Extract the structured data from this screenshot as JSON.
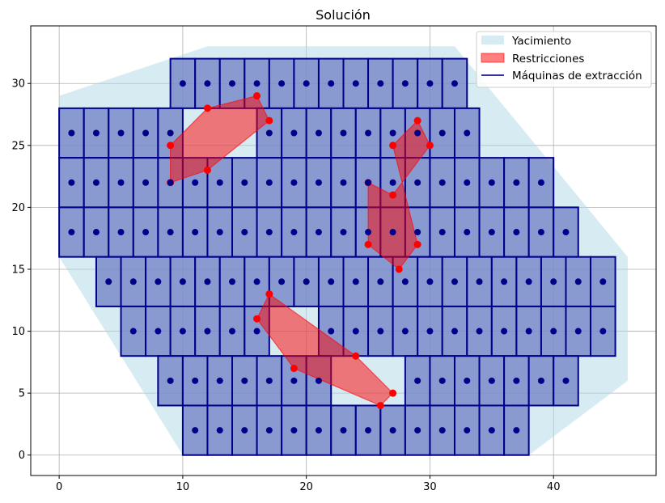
{
  "chart_data": {
    "type": "scatter",
    "title": "Solución",
    "xlabel": "",
    "ylabel": "",
    "xlim": [
      -2.3,
      48.3
    ],
    "ylim": [
      -1.65,
      34.65
    ],
    "xticks": [
      0,
      10,
      20,
      30,
      40
    ],
    "yticks": [
      0,
      5,
      10,
      15,
      20,
      25,
      30
    ],
    "grid": true,
    "legend_position": "top-right",
    "legend": [
      {
        "label": "Yacimiento",
        "kind": "patch",
        "color": "#add8e6"
      },
      {
        "label": "Restricciones",
        "kind": "patch",
        "color": "#ff0000"
      },
      {
        "label": "Máquinas de extracción",
        "kind": "line",
        "color": "#00008b"
      }
    ],
    "colors": {
      "deposit_fill": "#add8e6",
      "restriction_fill": "#ff0000",
      "restriction_vertex": "#ff0000",
      "machine_fill": "#6f7fc5",
      "machine_edge": "#00008b",
      "machine_center": "#00008b"
    },
    "deposit_polygon": [
      [
        0,
        29
      ],
      [
        12,
        33
      ],
      [
        32,
        33
      ],
      [
        46,
        16
      ],
      [
        46,
        6
      ],
      [
        38,
        0
      ],
      [
        10,
        0
      ],
      [
        0,
        16
      ]
    ],
    "restrictions": [
      [
        [
          9,
          25
        ],
        [
          12,
          28
        ],
        [
          16,
          29
        ],
        [
          17,
          27
        ],
        [
          12,
          23
        ],
        [
          9,
          22
        ]
      ],
      [
        [
          27,
          25
        ],
        [
          29,
          27
        ],
        [
          30,
          25
        ],
        [
          27,
          21
        ],
        [
          25,
          22
        ],
        [
          25,
          17
        ],
        [
          27.5,
          15
        ],
        [
          29,
          17
        ]
      ],
      [
        [
          16,
          11
        ],
        [
          17,
          13
        ],
        [
          24,
          8
        ],
        [
          27,
          5
        ],
        [
          26,
          4
        ],
        [
          19,
          7
        ]
      ]
    ],
    "machines": {
      "cell_width": 2,
      "cell_height": 4,
      "rows": [
        {
          "center_y": 30,
          "centers_x": [
            10,
            12,
            14,
            16,
            18,
            20,
            22,
            24,
            26,
            28,
            30,
            32
          ]
        },
        {
          "center_y": 26,
          "centers_x": [
            1,
            3,
            5,
            7,
            9,
            17,
            19,
            21,
            23,
            25,
            27,
            29,
            31,
            33
          ]
        },
        {
          "center_y": 22,
          "centers_x": [
            1,
            3,
            5,
            7,
            9,
            11,
            13,
            15,
            17,
            19,
            21,
            23,
            25,
            27,
            29,
            31,
            33,
            35,
            37,
            39
          ]
        },
        {
          "center_y": 18,
          "centers_x": [
            1,
            3,
            5,
            7,
            9,
            11,
            13,
            15,
            17,
            19,
            21,
            23,
            25,
            27,
            29,
            31,
            33,
            35,
            37,
            39,
            41
          ]
        },
        {
          "center_y": 14,
          "centers_x": [
            4,
            6,
            8,
            10,
            12,
            14,
            16,
            18,
            20,
            22,
            24,
            26,
            28,
            30,
            32,
            34,
            36,
            38,
            40,
            42,
            44
          ]
        },
        {
          "center_y": 10,
          "centers_x": [
            6,
            8,
            10,
            12,
            14,
            16,
            22,
            24,
            26,
            28,
            30,
            32,
            34,
            36,
            38,
            40,
            42,
            44
          ]
        },
        {
          "center_y": 6,
          "centers_x": [
            9,
            11,
            13,
            15,
            17,
            19,
            21,
            29,
            31,
            33,
            35,
            37,
            39,
            41
          ]
        },
        {
          "center_y": 2,
          "centers_x": [
            11,
            13,
            15,
            17,
            19,
            21,
            23,
            25,
            27,
            29,
            31,
            33,
            35,
            37
          ]
        }
      ]
    }
  }
}
